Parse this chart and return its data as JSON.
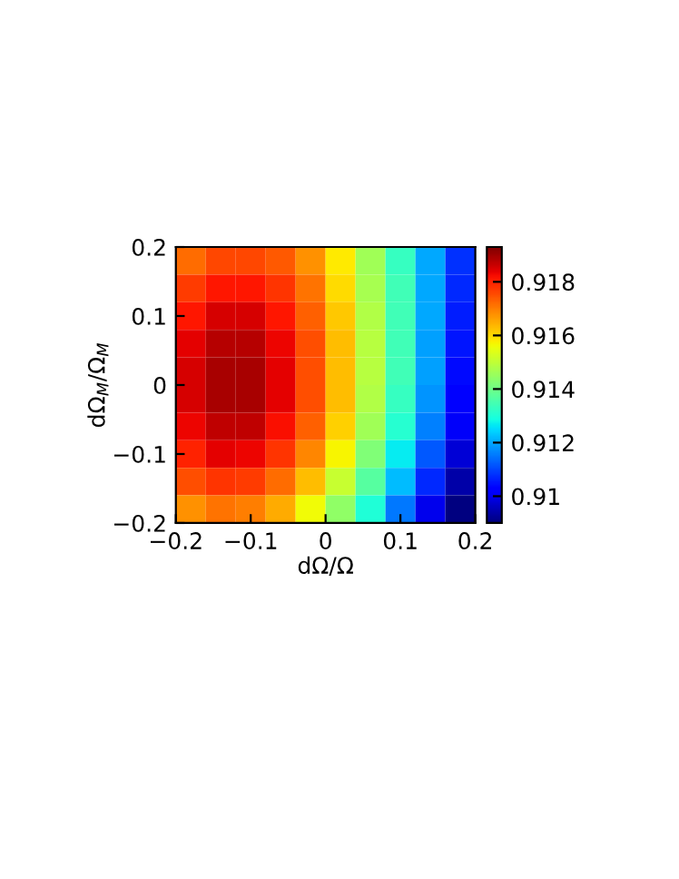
{
  "chart_data": {
    "type": "heatmap",
    "xlabel": "dΩ/Ω",
    "ylabel": "dΩ$_{M}$/Ω$_{M}$",
    "x": [
      -0.18,
      -0.14,
      -0.1,
      -0.06,
      -0.02,
      0.02,
      0.06,
      0.1,
      0.14,
      0.18
    ],
    "y": [
      0.18,
      0.14,
      0.1,
      0.06,
      0.02,
      -0.02,
      -0.06,
      -0.1,
      -0.14,
      -0.18
    ],
    "cells": [
      [
        0.9172,
        0.9176,
        0.9176,
        0.9174,
        0.9168,
        0.9158,
        0.9146,
        0.9133,
        0.912,
        0.9108
      ],
      [
        0.9177,
        0.9181,
        0.9181,
        0.9178,
        0.9171,
        0.916,
        0.9147,
        0.9134,
        0.912,
        0.9107
      ],
      [
        0.9181,
        0.9185,
        0.9185,
        0.9181,
        0.9173,
        0.9162,
        0.9148,
        0.9134,
        0.912,
        0.9106
      ],
      [
        0.9184,
        0.9188,
        0.9188,
        0.9183,
        0.9175,
        0.9163,
        0.9149,
        0.9134,
        0.9119,
        0.9105
      ],
      [
        0.9185,
        0.9189,
        0.9189,
        0.9184,
        0.9175,
        0.9163,
        0.9149,
        0.9134,
        0.9119,
        0.9104
      ],
      [
        0.9185,
        0.9189,
        0.9189,
        0.9184,
        0.9175,
        0.9163,
        0.9148,
        0.9133,
        0.9118,
        0.9103
      ],
      [
        0.9183,
        0.9187,
        0.9187,
        0.9182,
        0.9173,
        0.9161,
        0.9146,
        0.9131,
        0.9116,
        0.9101
      ],
      [
        0.918,
        0.9184,
        0.9183,
        0.9178,
        0.9169,
        0.9157,
        0.9142,
        0.9127,
        0.9112,
        0.9098
      ],
      [
        0.9175,
        0.9178,
        0.9177,
        0.9172,
        0.9163,
        0.9151,
        0.9137,
        0.9122,
        0.9107,
        0.9094
      ],
      [
        0.9168,
        0.9171,
        0.917,
        0.9165,
        0.9156,
        0.9144,
        0.913,
        0.9115,
        0.91,
        0.909
      ]
    ],
    "xlim": [
      -0.2,
      0.2
    ],
    "ylim": [
      -0.2,
      0.2
    ],
    "xticks": [
      -0.2,
      -0.1,
      0,
      0.1,
      0.2
    ],
    "yticks": [
      -0.2,
      -0.1,
      0,
      0.1,
      0.2
    ],
    "clim": [
      0.909,
      0.9193
    ],
    "cticks": [
      0.91,
      0.912,
      0.914,
      0.916,
      0.918
    ]
  }
}
